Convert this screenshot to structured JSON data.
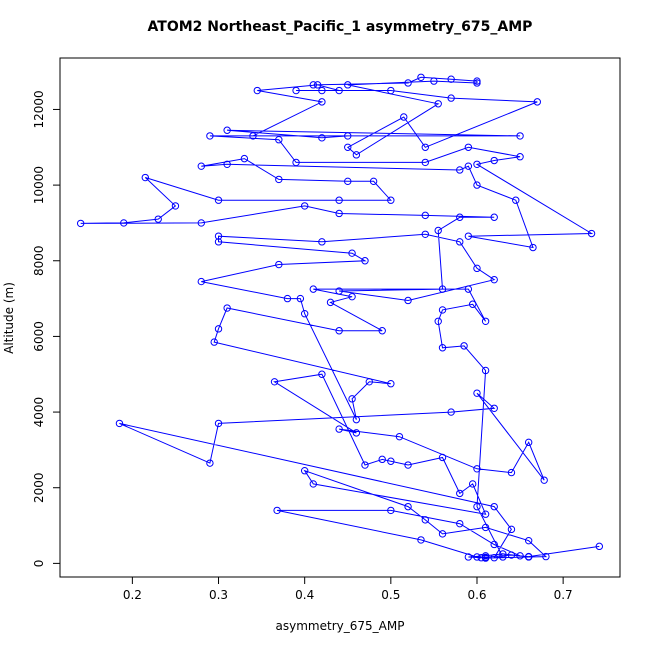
{
  "chart_data": {
    "type": "line",
    "title": "ATOM2 Northeast_Pacific_1 asymmetry_675_AMP",
    "x_label": "asymmetry_675_AMP",
    "y_label": "Altitude (m)",
    "xlim": [
      0.116,
      0.766
    ],
    "ylim": [
      -360,
      13360
    ],
    "xticks": [
      0.2,
      0.3,
      0.4,
      0.5,
      0.6,
      0.7
    ],
    "yticks": [
      0,
      2000,
      4000,
      6000,
      8000,
      10000,
      12000
    ],
    "x": [
      0.742,
      0.66,
      0.64,
      0.61,
      0.605,
      0.59,
      0.61,
      0.63,
      0.65,
      0.62,
      0.58,
      0.5,
      0.368,
      0.535,
      0.6,
      0.61,
      0.66,
      0.68,
      0.66,
      0.61,
      0.56,
      0.54,
      0.52,
      0.4,
      0.41,
      0.61,
      0.595,
      0.58,
      0.56,
      0.52,
      0.5,
      0.49,
      0.47,
      0.42,
      0.365,
      0.46,
      0.44,
      0.51,
      0.6,
      0.64,
      0.66,
      0.678,
      0.6,
      0.62,
      0.57,
      0.3,
      0.29,
      0.185,
      0.62,
      0.64,
      0.62,
      0.63,
      0.6,
      0.61,
      0.585,
      0.56,
      0.555,
      0.56,
      0.595,
      0.61,
      0.59,
      0.41,
      0.455,
      0.43,
      0.49,
      0.44,
      0.31,
      0.3,
      0.295,
      0.5,
      0.475,
      0.455,
      0.46,
      0.4,
      0.395,
      0.38,
      0.28,
      0.37,
      0.47,
      0.455,
      0.3,
      0.3,
      0.42,
      0.54,
      0.58,
      0.6,
      0.62,
      0.52,
      0.44,
      0.56,
      0.555,
      0.58,
      0.62,
      0.54,
      0.44,
      0.4,
      0.28,
      0.14,
      0.19,
      0.23,
      0.25,
      0.215,
      0.3,
      0.44,
      0.5,
      0.48,
      0.45,
      0.37,
      0.33,
      0.28,
      0.31,
      0.58,
      0.59,
      0.6,
      0.645,
      0.665,
      0.59,
      0.733,
      0.6,
      0.62,
      0.65,
      0.59,
      0.54,
      0.39,
      0.37,
      0.29,
      0.65,
      0.31,
      0.42,
      0.45,
      0.34,
      0.42,
      0.345,
      0.415,
      0.44,
      0.39,
      0.42,
      0.5,
      0.57,
      0.67,
      0.54,
      0.515,
      0.45,
      0.46,
      0.555,
      0.45,
      0.55,
      0.6,
      0.6,
      0.57,
      0.535,
      0.52,
      0.41
    ],
    "series": [
      {
        "color": "#0000ff",
        "values": [
          450,
          180,
          220,
          160,
          150,
          170,
          200,
          250,
          200,
          500,
          1050,
          1400,
          1400,
          620,
          170,
          140,
          170,
          180,
          600,
          950,
          780,
          1150,
          1500,
          2450,
          2100,
          1300,
          2100,
          1850,
          2800,
          2600,
          2700,
          2750,
          2600,
          5000,
          4800,
          3450,
          3550,
          3350,
          2500,
          2400,
          3200,
          2200,
          4500,
          4100,
          4000,
          3700,
          2650,
          3700,
          1500,
          900,
          150,
          170,
          1500,
          5100,
          5750,
          5700,
          6400,
          6700,
          6850,
          6400,
          7250,
          7250,
          7050,
          6900,
          6150,
          6150,
          6750,
          6200,
          5850,
          4750,
          4800,
          4350,
          3800,
          6600,
          7000,
          7000,
          7450,
          7900,
          8000,
          8200,
          8500,
          8650,
          8500,
          8700,
          8500,
          7800,
          7500,
          6950,
          7200,
          7250,
          8800,
          9150,
          9150,
          9200,
          9250,
          9450,
          9000,
          8987,
          9000,
          9100,
          9450,
          10200,
          9600,
          9600,
          9600,
          10100,
          10100,
          10150,
          10700,
          10500,
          10550,
          10400,
          10500,
          10000,
          9600,
          8350,
          8650,
          8720,
          10550,
          10650,
          10750,
          11000,
          10600,
          10600,
          11200,
          11300,
          11300,
          11450,
          11250,
          11300,
          11300,
          12200,
          12500,
          12650,
          12500,
          12500,
          12500,
          12500,
          12300,
          12200,
          11000,
          11800,
          11000,
          10800,
          12150,
          12650,
          12750,
          12700,
          12750,
          12800,
          12850,
          12700,
          12650
        ]
      }
    ]
  }
}
